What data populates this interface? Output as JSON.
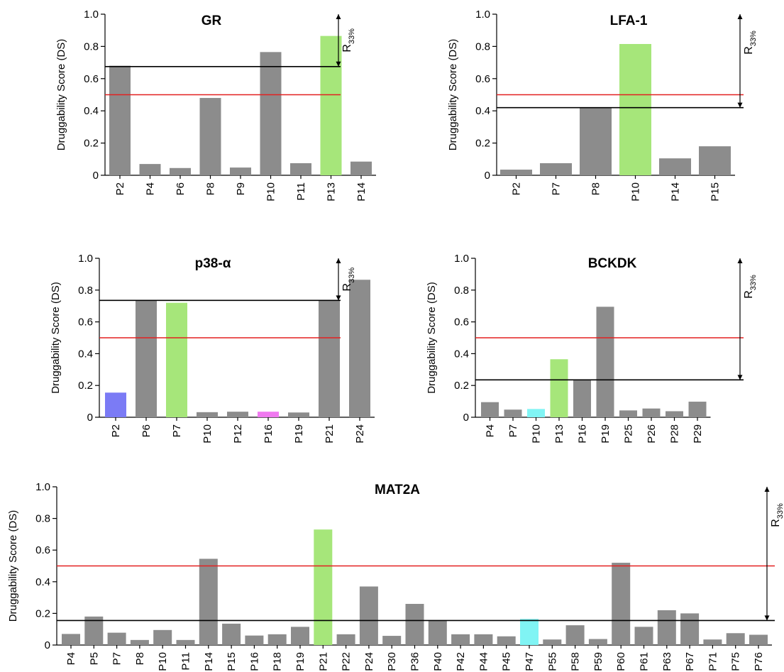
{
  "colors": {
    "gray": "#8c8c8c",
    "green": "#a6e67a",
    "blue": "#7b7bf5",
    "magenta": "#f07af0",
    "cyan": "#80f4f4",
    "threshold_red": "#e32020",
    "threshold_black": "#000000"
  },
  "r_label_main": "R",
  "r_label_sub": "33%",
  "chart_data": [
    {
      "type": "bar",
      "title": "GR",
      "ylabel": "Druggability Score (DS)",
      "ylim": [
        0,
        1.0
      ],
      "yticks": [
        0,
        0.2,
        0.4,
        0.6,
        0.8,
        1.0
      ],
      "ytick_labels": [
        "0",
        "0.2",
        "0.4",
        "0.6",
        "0.8",
        "1.0"
      ],
      "categories": [
        "P2",
        "P4",
        "P6",
        "P8",
        "P9",
        "P10",
        "P11",
        "P13",
        "P14"
      ],
      "values": [
        0.68,
        0.07,
        0.045,
        0.48,
        0.048,
        0.765,
        0.075,
        0.865,
        0.085
      ],
      "highlight": {
        "P13": "green"
      },
      "red_line": 0.5,
      "black_line": 0.675,
      "r33_label": "R33%"
    },
    {
      "type": "bar",
      "title": "LFA-1",
      "ylabel": "Druggability Score (DS)",
      "ylim": [
        0,
        1.0
      ],
      "yticks": [
        0,
        0.2,
        0.4,
        0.6,
        0.8,
        1.0
      ],
      "ytick_labels": [
        "0",
        "0.2",
        "0.4",
        "0.6",
        "0.8",
        "1.0"
      ],
      "categories": [
        "P2",
        "P7",
        "P8",
        "P10",
        "P14",
        "P15"
      ],
      "values": [
        0.035,
        0.075,
        0.42,
        0.815,
        0.105,
        0.18
      ],
      "highlight": {
        "P10": "green"
      },
      "red_line": 0.5,
      "black_line": 0.42,
      "r33_label": "R33%"
    },
    {
      "type": "bar",
      "title": "p38-α",
      "ylabel": "Druggability Score (DS)",
      "ylim": [
        0,
        1.0
      ],
      "yticks": [
        0,
        0.2,
        0.4,
        0.6,
        0.8,
        1.0
      ],
      "ytick_labels": [
        "0",
        "0.2",
        "0.4",
        "0.6",
        "0.8",
        "1.0"
      ],
      "categories": [
        "P2",
        "P6",
        "P7",
        "P10",
        "P12",
        "P16",
        "P19",
        "P21",
        "P24"
      ],
      "values": [
        0.155,
        0.735,
        0.72,
        0.032,
        0.035,
        0.035,
        0.03,
        0.735,
        0.865
      ],
      "highlight": {
        "P2": "blue",
        "P7": "green",
        "P16": "magenta"
      },
      "red_line": 0.5,
      "black_line": 0.735,
      "r33_label": "R33%"
    },
    {
      "type": "bar",
      "title": "BCKDK",
      "ylabel": "Druggability Score (DS)",
      "ylim": [
        0,
        1.0
      ],
      "yticks": [
        0,
        0.2,
        0.4,
        0.6,
        0.8,
        1.0
      ],
      "ytick_labels": [
        "0",
        "0.2",
        "0.4",
        "0.6",
        "0.8",
        "1.0"
      ],
      "categories": [
        "P4",
        "P7",
        "P10",
        "P13",
        "P16",
        "P19",
        "P25",
        "P26",
        "P28",
        "P29"
      ],
      "values": [
        0.095,
        0.048,
        0.052,
        0.365,
        0.235,
        0.695,
        0.043,
        0.055,
        0.038,
        0.098
      ],
      "highlight": {
        "P10": "cyan",
        "P13": "green"
      },
      "red_line": 0.5,
      "black_line": 0.235,
      "r33_label": "R33%"
    },
    {
      "type": "bar",
      "title": "MAT2A",
      "ylabel": "Druggability Score (DS)",
      "ylim": [
        0,
        1.0
      ],
      "yticks": [
        0,
        0.2,
        0.4,
        0.6,
        0.8,
        1.0
      ],
      "ytick_labels": [
        "0",
        "0.2",
        "0.4",
        "0.6",
        "0.8",
        "1.0"
      ],
      "categories": [
        "P4",
        "P5",
        "P7",
        "P8",
        "P10",
        "P11",
        "P14",
        "P15",
        "P16",
        "P18",
        "P19",
        "P21",
        "P22",
        "P24",
        "P30",
        "P36",
        "P40",
        "P42",
        "P44",
        "P45",
        "P47",
        "P55",
        "P58",
        "P59",
        "P60",
        "P61",
        "P63",
        "P67",
        "P71",
        "P75",
        "P76"
      ],
      "values": [
        0.07,
        0.18,
        0.078,
        0.032,
        0.095,
        0.032,
        0.545,
        0.135,
        0.06,
        0.068,
        0.115,
        0.73,
        0.068,
        0.37,
        0.058,
        0.26,
        0.155,
        0.068,
        0.068,
        0.055,
        0.165,
        0.035,
        0.125,
        0.038,
        0.52,
        0.115,
        0.22,
        0.2,
        0.035,
        0.075,
        0.065
      ],
      "highlight": {
        "P21": "green",
        "P47": "cyan"
      },
      "red_line": 0.5,
      "black_line": 0.155,
      "r33_label": "R33%"
    }
  ]
}
